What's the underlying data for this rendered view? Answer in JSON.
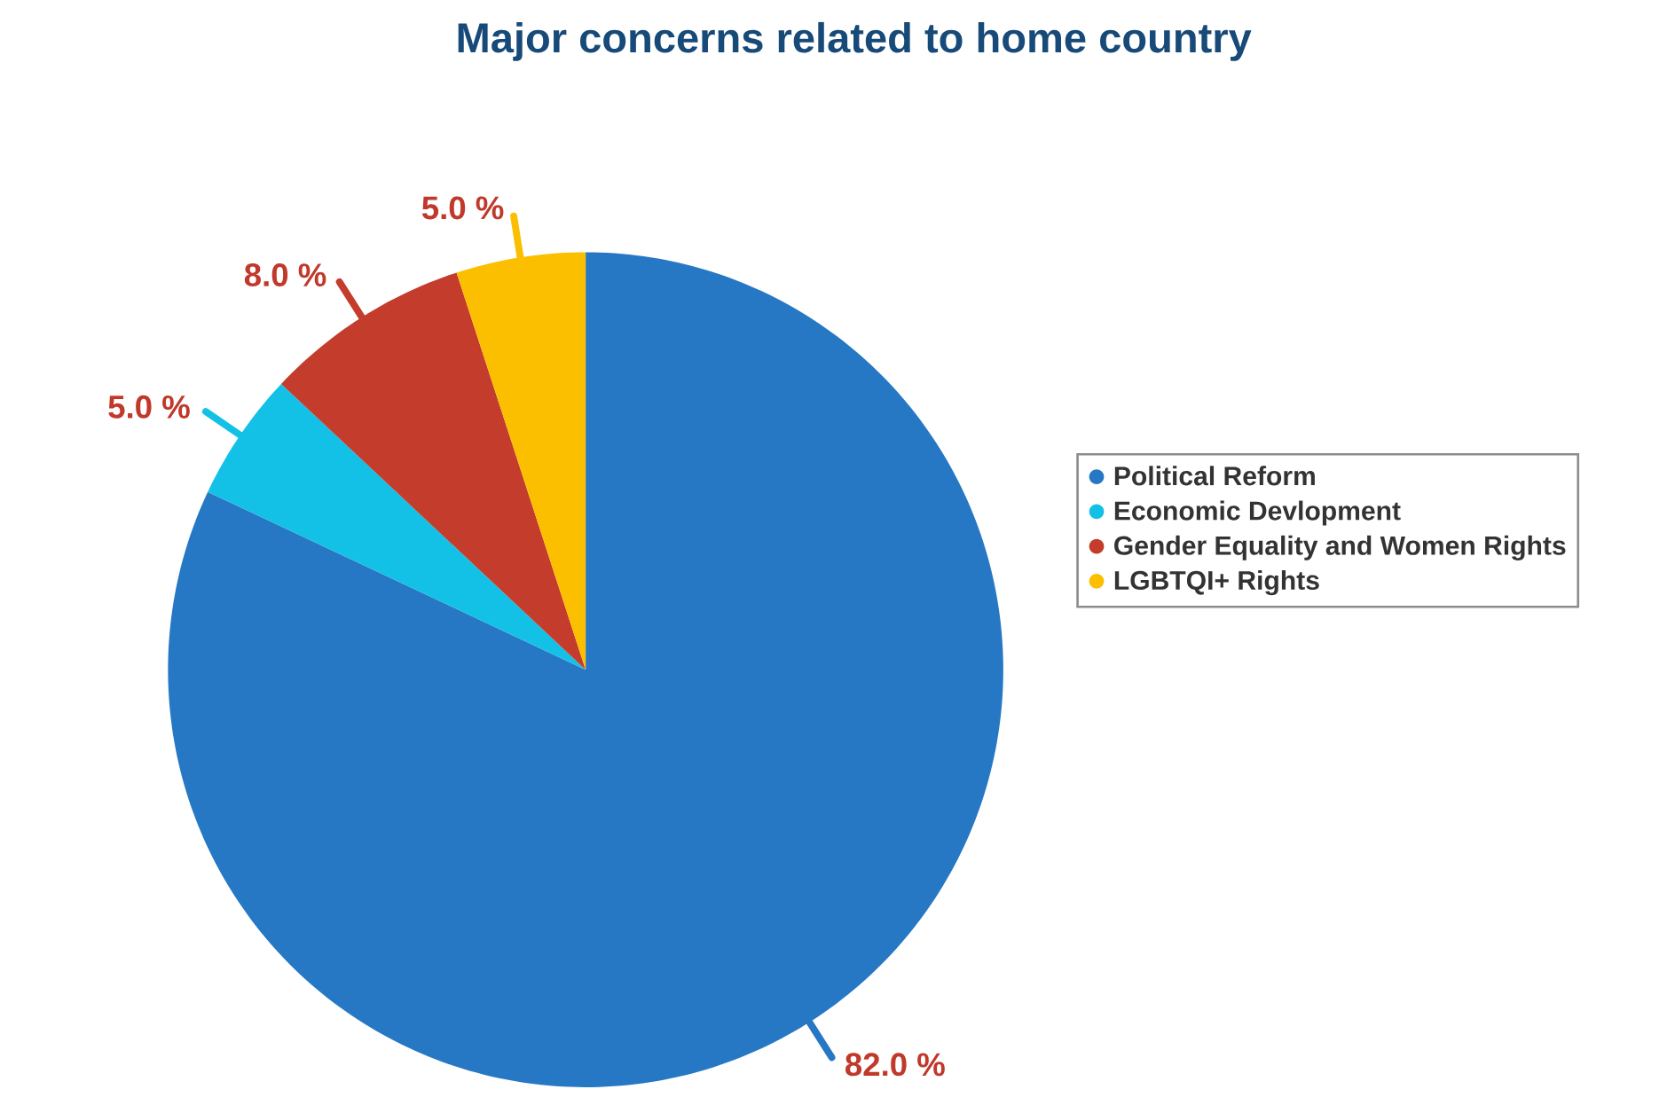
{
  "chart_data": {
    "type": "pie",
    "title": "Major concerns related to home country",
    "categories": [
      "Political Reform",
      "Economic Devlopment",
      "Gender Equality and Women Rights",
      "LGBTQI+ Rights"
    ],
    "values": [
      82,
      5,
      8,
      5
    ],
    "value_labels": [
      "82.0 %",
      "5.0 %",
      "8.0 %",
      "5.0 %"
    ],
    "colors": [
      "#2778c4",
      "#13c0e6",
      "#c43c2c",
      "#fbbf00"
    ],
    "legend": "right"
  }
}
